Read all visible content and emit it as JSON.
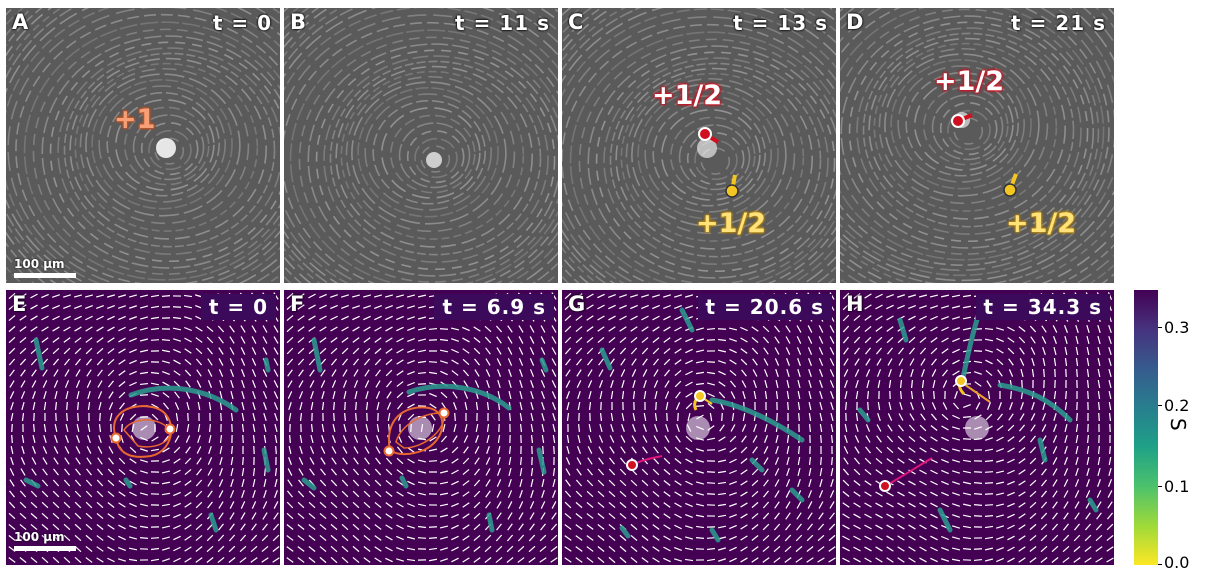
{
  "top_panels": [
    {
      "letter": "A",
      "time": "t = 0"
    },
    {
      "letter": "B",
      "time": "t = 11 s"
    },
    {
      "letter": "C",
      "time": "t = 13 s"
    },
    {
      "letter": "D",
      "time": "t = 21 s"
    }
  ],
  "bottom_panels": [
    {
      "letter": "E",
      "time": "t = 0"
    },
    {
      "letter": "F",
      "time": "t = 6.9 s"
    },
    {
      "letter": "G",
      "time": "t = 20.6 s"
    },
    {
      "letter": "H",
      "time": "t = 34.3 s"
    }
  ],
  "defect_labels": {
    "plus_one": "+1",
    "plus_half": "+1/2"
  },
  "scale_bar": "100 µm",
  "colorbar": {
    "label": "S",
    "ticks": [
      "0.3",
      "0.2",
      "0.1",
      "0.0"
    ],
    "min": 0.0,
    "max": 0.35
  },
  "colors": {
    "plus_one": "#e8692f",
    "defect_red": "#d01020",
    "defect_yellow": "#f3c621",
    "field_background": "#440154"
  }
}
